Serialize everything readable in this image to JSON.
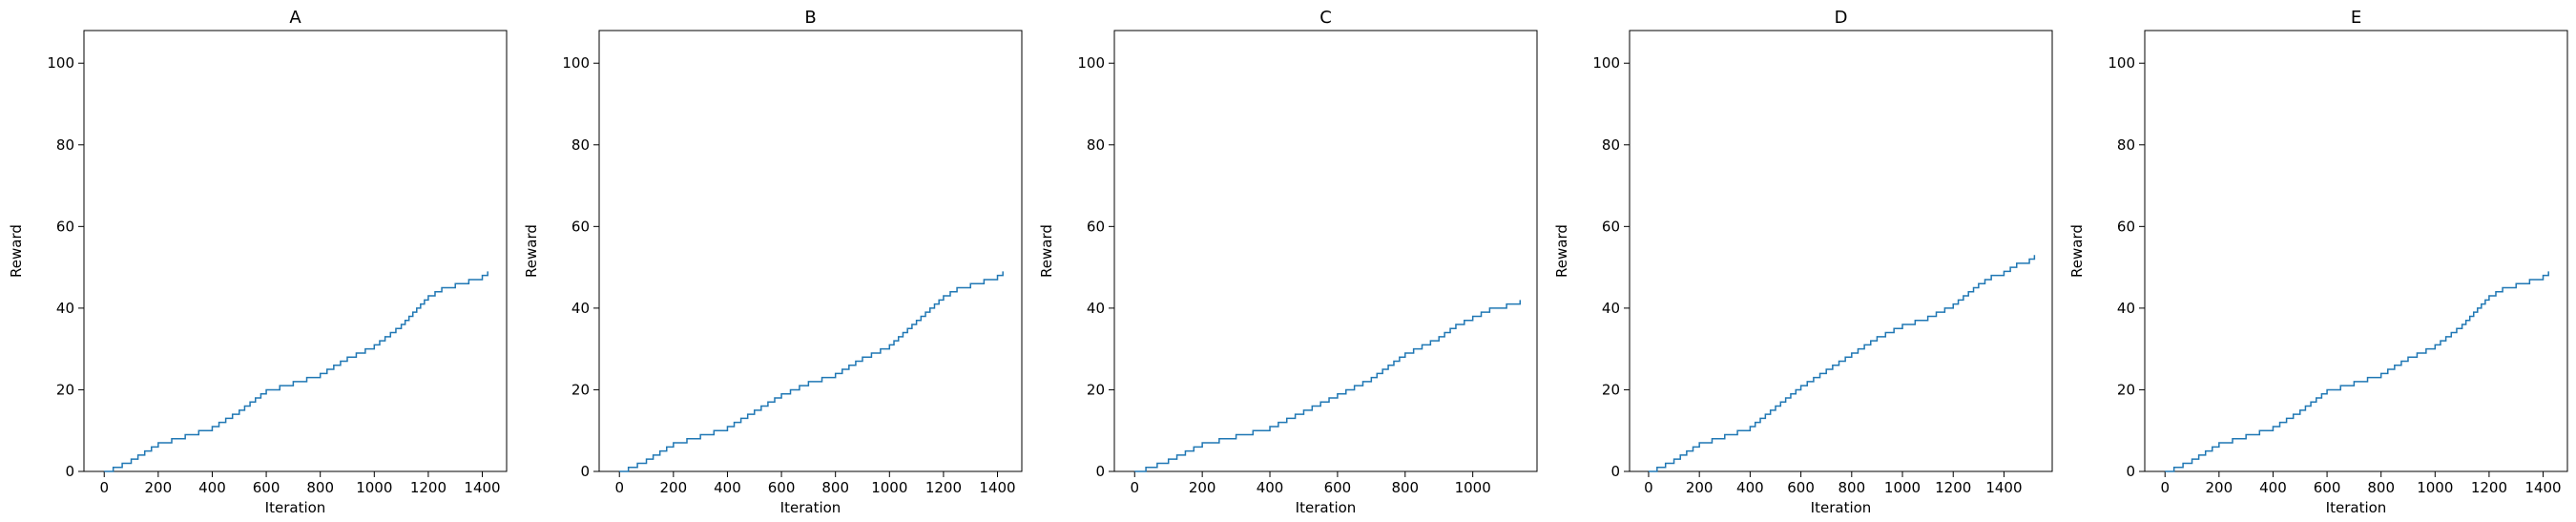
{
  "chart_data": [
    {
      "type": "line",
      "title": "A",
      "xlabel": "Iteration",
      "ylabel": "Reward",
      "xlim": [
        -75,
        1490
      ],
      "ylim": [
        0,
        108
      ],
      "xticks": [
        0,
        200,
        400,
        600,
        800,
        1000,
        1200,
        1400
      ],
      "yticks": [
        0,
        20,
        40,
        60,
        80,
        100
      ],
      "grid": false,
      "series": [
        {
          "color": "#1f77b4",
          "x": [
            0,
            100,
            200,
            300,
            400,
            500,
            600,
            700,
            800,
            900,
            1000,
            1100,
            1200,
            1250,
            1300,
            1350,
            1400,
            1420
          ],
          "y": [
            0,
            3,
            7,
            9,
            11,
            15,
            20,
            22,
            24,
            28,
            31,
            36,
            43,
            45,
            46,
            47,
            48,
            49
          ]
        }
      ]
    },
    {
      "type": "line",
      "title": "B",
      "xlabel": "Iteration",
      "ylabel": "Reward",
      "xlim": [
        -75,
        1490
      ],
      "ylim": [
        0,
        108
      ],
      "xticks": [
        0,
        200,
        400,
        600,
        800,
        1000,
        1200,
        1400
      ],
      "yticks": [
        0,
        20,
        40,
        60,
        80,
        100
      ],
      "grid": false,
      "series": [
        {
          "color": "#1f77b4",
          "x": [
            0,
            100,
            200,
            300,
            400,
            500,
            600,
            700,
            800,
            900,
            1000,
            1100,
            1200,
            1250,
            1300,
            1350,
            1400,
            1420
          ],
          "y": [
            0,
            3,
            7,
            9,
            11,
            15,
            19,
            22,
            24,
            28,
            31,
            37,
            43,
            45,
            46,
            47,
            48,
            49
          ]
        }
      ]
    },
    {
      "type": "line",
      "title": "C",
      "xlabel": "Iteration",
      "ylabel": "Reward",
      "xlim": [
        -60,
        1190
      ],
      "ylim": [
        0,
        108
      ],
      "xticks": [
        0,
        200,
        400,
        600,
        800,
        1000
      ],
      "yticks": [
        0,
        20,
        40,
        60,
        80,
        100
      ],
      "grid": false,
      "series": [
        {
          "color": "#1f77b4",
          "x": [
            0,
            100,
            200,
            300,
            400,
            500,
            600,
            700,
            800,
            900,
            950,
            1000,
            1050,
            1100,
            1140
          ],
          "y": [
            0,
            3,
            7,
            9,
            11,
            15,
            19,
            23,
            29,
            33,
            36,
            38,
            40,
            41,
            42
          ]
        }
      ]
    },
    {
      "type": "line",
      "title": "D",
      "xlabel": "Iteration",
      "ylabel": "Reward",
      "xlim": [
        -75,
        1590
      ],
      "ylim": [
        0,
        108
      ],
      "xticks": [
        0,
        200,
        400,
        600,
        800,
        1000,
        1200,
        1400
      ],
      "yticks": [
        0,
        20,
        40,
        60,
        80,
        100
      ],
      "grid": false,
      "series": [
        {
          "color": "#1f77b4",
          "x": [
            0,
            100,
            200,
            300,
            400,
            500,
            600,
            700,
            800,
            900,
            1000,
            1100,
            1200,
            1300,
            1350,
            1400,
            1450,
            1500,
            1520
          ],
          "y": [
            0,
            3,
            7,
            9,
            11,
            16,
            21,
            25,
            29,
            33,
            36,
            38,
            41,
            46,
            48,
            49,
            51,
            52,
            53
          ]
        }
      ]
    },
    {
      "type": "line",
      "title": "E",
      "xlabel": "Iteration",
      "ylabel": "Reward",
      "xlim": [
        -75,
        1490
      ],
      "ylim": [
        0,
        108
      ],
      "xticks": [
        0,
        200,
        400,
        600,
        800,
        1000,
        1200,
        1400
      ],
      "yticks": [
        0,
        20,
        40,
        60,
        80,
        100
      ],
      "grid": false,
      "series": [
        {
          "color": "#1f77b4",
          "x": [
            0,
            100,
            200,
            300,
            400,
            500,
            600,
            700,
            800,
            900,
            1000,
            1100,
            1200,
            1250,
            1300,
            1350,
            1400,
            1420
          ],
          "y": [
            0,
            3,
            7,
            9,
            11,
            15,
            20,
            22,
            24,
            28,
            31,
            36,
            43,
            45,
            46,
            47,
            48,
            49
          ]
        }
      ]
    }
  ]
}
